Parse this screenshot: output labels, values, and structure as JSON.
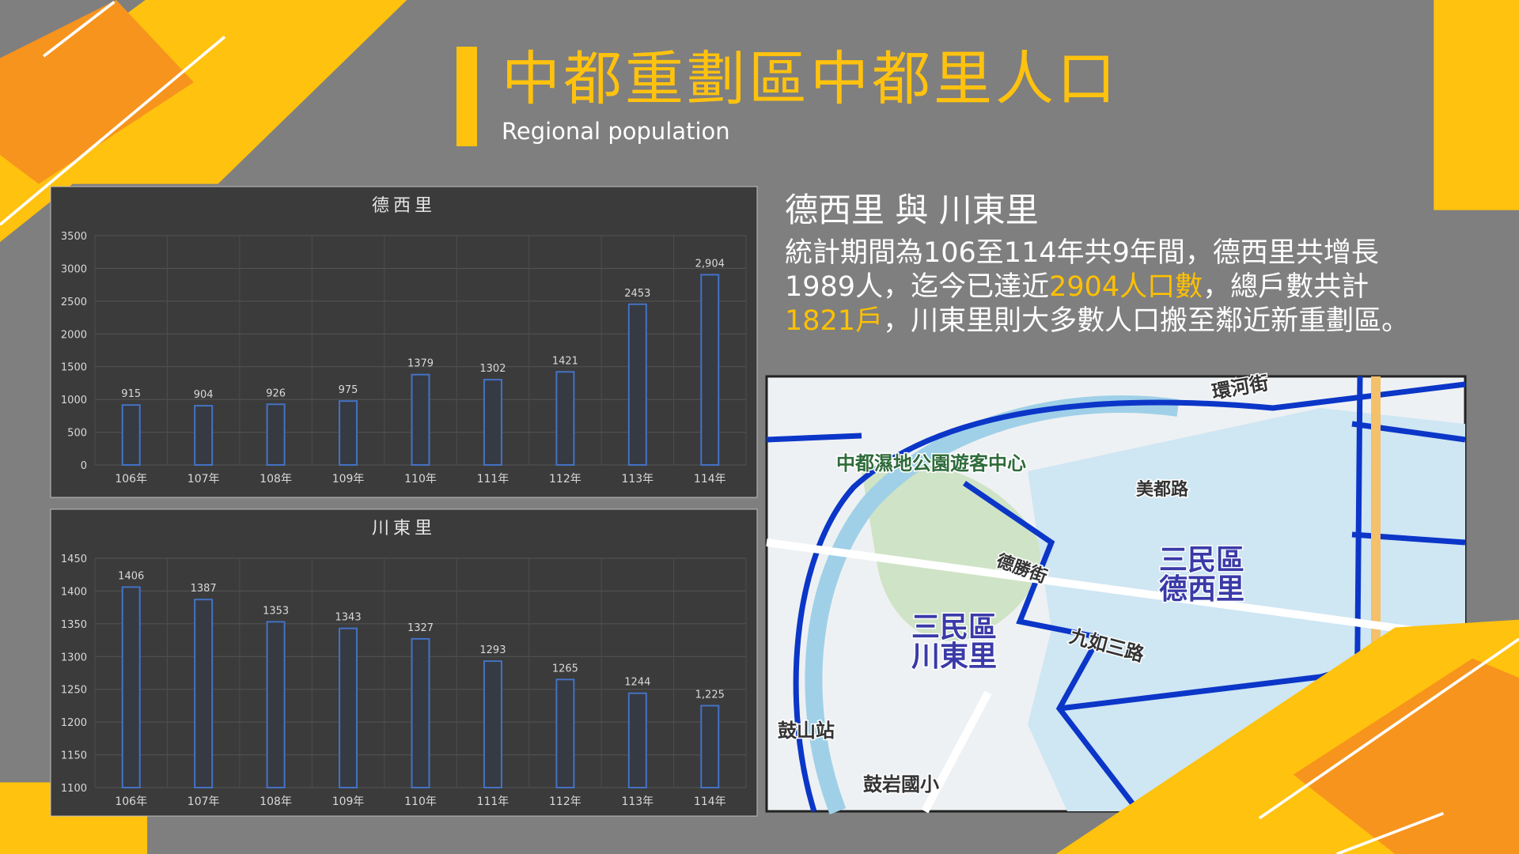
{
  "header": {
    "title": "中都重劃區中都里人口",
    "subtitle": "Regional population"
  },
  "chart_data": [
    {
      "type": "bar",
      "title": "德西里",
      "categories": [
        "106年",
        "107年",
        "108年",
        "109年",
        "110年",
        "111年",
        "112年",
        "113年",
        "114年"
      ],
      "values": [
        915,
        904,
        926,
        975,
        1379,
        1302,
        1421,
        2453,
        2904
      ],
      "value_labels": [
        "915",
        "904",
        "926",
        "975",
        "1379",
        "1302",
        "1421",
        "2453",
        "2,904"
      ],
      "color": "#4472c4",
      "ylim": [
        0,
        3500
      ],
      "yticks": [
        0,
        500,
        1000,
        1500,
        2000,
        2500,
        3000,
        3500
      ],
      "grid": true
    },
    {
      "type": "bar",
      "title": "川東里",
      "categories": [
        "106年",
        "107年",
        "108年",
        "109年",
        "110年",
        "111年",
        "112年",
        "113年",
        "114年"
      ],
      "values": [
        1406,
        1387,
        1353,
        1343,
        1327,
        1293,
        1265,
        1244,
        1225
      ],
      "value_labels": [
        "1406",
        "1387",
        "1353",
        "1343",
        "1327",
        "1293",
        "1265",
        "1244",
        "1,225"
      ],
      "color": "#4472c4",
      "ylim": [
        1100,
        1450
      ],
      "yticks": [
        1100,
        1150,
        1200,
        1250,
        1300,
        1350,
        1400,
        1450
      ],
      "grid": true
    }
  ],
  "description": {
    "heading": "德西里 與 川東里",
    "highlight_color": "#ffc000",
    "lines": [
      [
        {
          "text": "統計期間為106至114年共9年間，德西里共增長"
        }
      ],
      [
        {
          "text": "1989人，迄今已達近"
        },
        {
          "text": "2904人口數",
          "highlight": true
        },
        {
          "text": "，總戶數共計"
        }
      ],
      [
        {
          "text": "1821戶",
          "highlight": true
        },
        {
          "text": "，川東里則大多數人口搬至鄰近新重劃區。"
        }
      ]
    ]
  },
  "map": {
    "labels": [
      "三民區",
      "德西里",
      "三民區",
      "川東里",
      "中都濕地公園遊客中心",
      "九如三路",
      "德勝街",
      "環河街",
      "鼓岩國小",
      "鼓山站",
      "美都路"
    ]
  }
}
